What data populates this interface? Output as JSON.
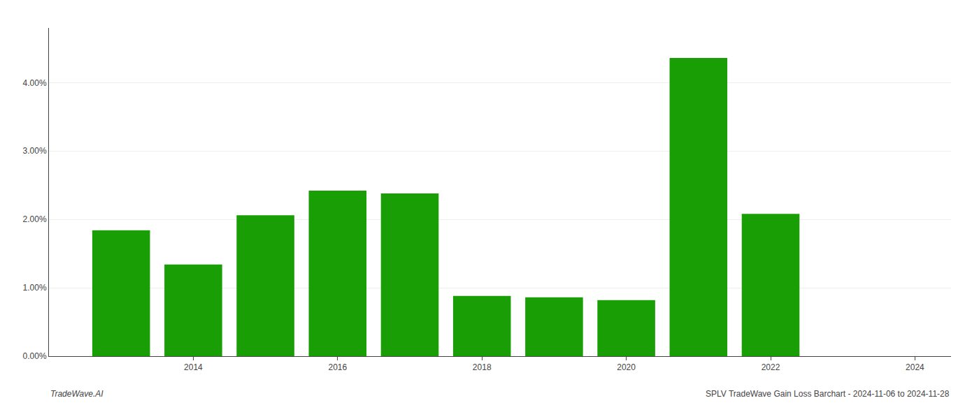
{
  "chart_data": {
    "type": "bar",
    "x": [
      2013,
      2014,
      2015,
      2016,
      2017,
      2018,
      2019,
      2020,
      2021,
      2022,
      2023
    ],
    "values": [
      1.84,
      1.34,
      2.06,
      2.42,
      2.38,
      0.88,
      0.86,
      0.82,
      4.36,
      2.08,
      0.0
    ],
    "color": "#1a9e06",
    "xlim": [
      2012,
      2024.5
    ],
    "xticks": [
      2014,
      2016,
      2018,
      2020,
      2022,
      2024
    ],
    "ylim": [
      0,
      4.8
    ],
    "yticks": [
      {
        "value": 0.0,
        "label": "0.00%"
      },
      {
        "value": 1.0,
        "label": "1.00%"
      },
      {
        "value": 2.0,
        "label": "2.00%"
      },
      {
        "value": 3.0,
        "label": "3.00%"
      },
      {
        "value": 4.0,
        "label": "4.00%"
      }
    ],
    "grid": true,
    "annotations": [
      "TradeWave.AI",
      "SPLV TradeWave Gain Loss Barchart - 2024-11-06 to 2024-11-28"
    ]
  }
}
